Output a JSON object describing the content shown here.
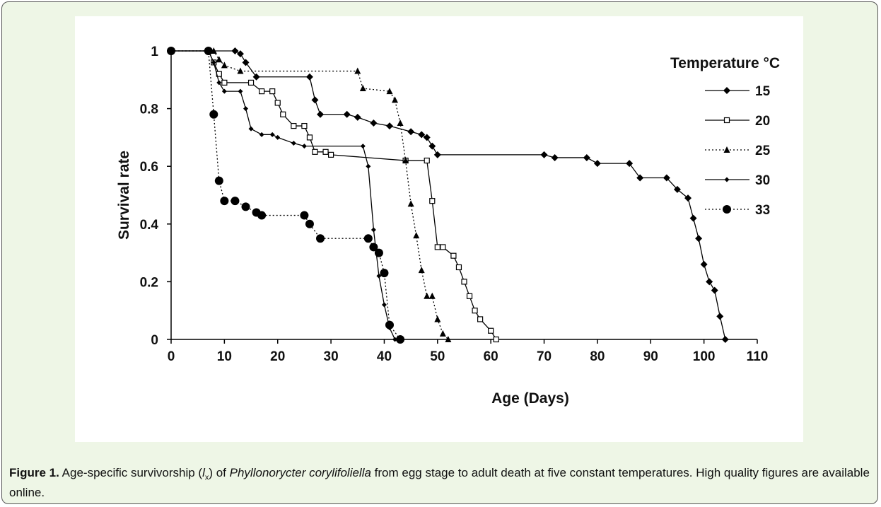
{
  "chart_data": {
    "type": "line",
    "xlabel": "Age (Days)",
    "ylabel": "Survival rate",
    "legend_title": "Temperature °C",
    "xlim": [
      0,
      110
    ],
    "xticks": [
      0,
      10,
      20,
      30,
      40,
      50,
      60,
      70,
      80,
      90,
      100,
      110
    ],
    "ylim": [
      0,
      1
    ],
    "yticks": [
      0,
      0.2,
      0.4,
      0.6,
      0.8,
      1
    ],
    "series": [
      {
        "name": "15",
        "color": "#000000",
        "marker": "diamond",
        "linestyle": "solid",
        "x": [
          0,
          12,
          13,
          14,
          16,
          26,
          27,
          28,
          33,
          35,
          38,
          41,
          45,
          47,
          48,
          49,
          50,
          70,
          72,
          78,
          80,
          86,
          88,
          93,
          95,
          97,
          98,
          99,
          100,
          101,
          102,
          103,
          104
        ],
        "values": [
          1,
          1,
          0.99,
          0.96,
          0.91,
          0.91,
          0.83,
          0.78,
          0.78,
          0.77,
          0.75,
          0.74,
          0.72,
          0.71,
          0.7,
          0.67,
          0.64,
          0.64,
          0.63,
          0.63,
          0.61,
          0.61,
          0.56,
          0.56,
          0.52,
          0.49,
          0.42,
          0.35,
          0.26,
          0.2,
          0.17,
          0.08,
          0
        ]
      },
      {
        "name": "20",
        "color": "#000000",
        "marker": "square",
        "linestyle": "solid",
        "x": [
          0,
          7,
          8,
          9,
          10,
          15,
          17,
          19,
          20,
          21,
          23,
          25,
          26,
          27,
          29,
          30,
          44,
          48,
          49,
          50,
          51,
          53,
          54,
          55,
          56,
          57,
          58,
          60,
          61
        ],
        "values": [
          1,
          1,
          0.96,
          0.92,
          0.89,
          0.89,
          0.86,
          0.86,
          0.82,
          0.78,
          0.74,
          0.74,
          0.7,
          0.65,
          0.65,
          0.64,
          0.62,
          0.62,
          0.48,
          0.32,
          0.32,
          0.29,
          0.25,
          0.2,
          0.15,
          0.1,
          0.07,
          0.03,
          0
        ]
      },
      {
        "name": "25",
        "color": "#000000",
        "marker": "triangle",
        "linestyle": "dotted",
        "x": [
          0,
          8,
          9,
          10,
          13,
          35,
          36,
          41,
          42,
          43,
          44,
          45,
          46,
          47,
          48,
          49,
          50,
          51,
          52
        ],
        "values": [
          1,
          1,
          0.97,
          0.95,
          0.93,
          0.93,
          0.87,
          0.86,
          0.83,
          0.75,
          0.62,
          0.47,
          0.36,
          0.24,
          0.15,
          0.15,
          0.07,
          0.02,
          0
        ]
      },
      {
        "name": "30",
        "color": "#000000",
        "marker": "small-diamond",
        "linestyle": "solid",
        "x": [
          0,
          7,
          8,
          9,
          10,
          13,
          14,
          15,
          17,
          19,
          20,
          23,
          25,
          36,
          37,
          38,
          39,
          40,
          41,
          42
        ],
        "values": [
          1,
          1,
          0.96,
          0.89,
          0.86,
          0.86,
          0.8,
          0.73,
          0.71,
          0.71,
          0.7,
          0.68,
          0.67,
          0.67,
          0.6,
          0.38,
          0.22,
          0.12,
          0.04,
          0
        ]
      },
      {
        "name": "33",
        "color": "#000000",
        "marker": "circle",
        "linestyle": "dotted",
        "x": [
          0,
          7,
          8,
          9,
          10,
          12,
          14,
          16,
          17,
          25,
          26,
          28,
          37,
          38,
          39,
          40,
          41,
          43
        ],
        "values": [
          1,
          1,
          0.78,
          0.55,
          0.48,
          0.48,
          0.46,
          0.44,
          0.43,
          0.43,
          0.4,
          0.35,
          0.35,
          0.32,
          0.3,
          0.23,
          0.05,
          0
        ]
      }
    ]
  },
  "caption": {
    "label": "Figure 1.",
    "text1": "Age-specific survivorship (",
    "var": "l",
    "sub": "x",
    "text2": ") of ",
    "species": "Phyllonorycter corylifoliella",
    "text3": " from egg stage to adult death at five constant temperatures. High quality figures are available online."
  }
}
